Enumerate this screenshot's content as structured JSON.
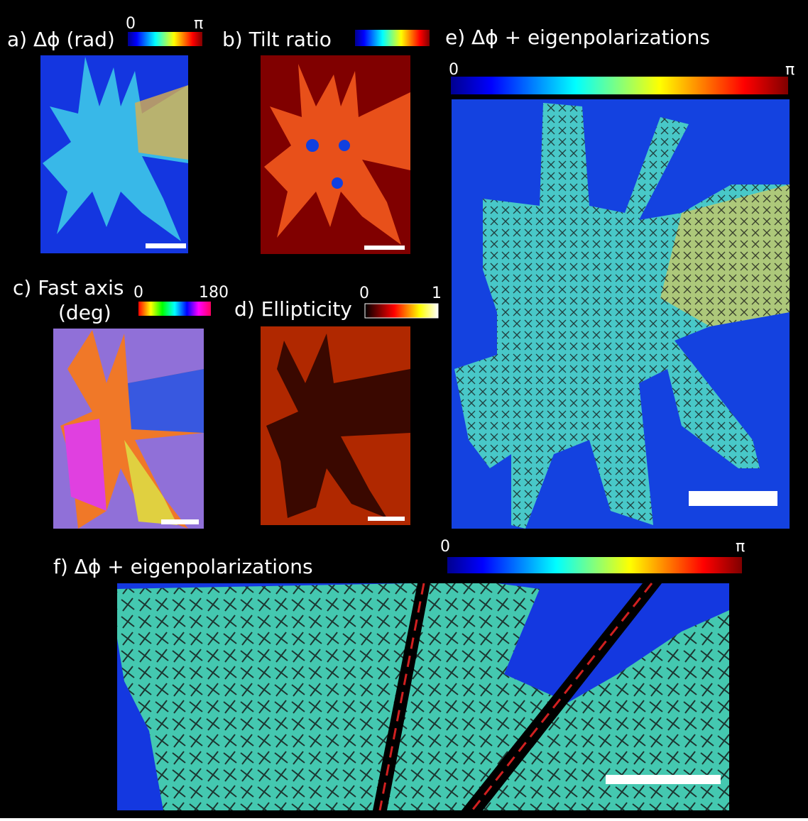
{
  "a": {
    "label": "a) Δϕ (rad)",
    "colorbar": {
      "min": "0",
      "max": "π"
    }
  },
  "b": {
    "label": "b) Tilt ratio"
  },
  "c": {
    "label": "c) Fast axis",
    "label_line2": "(deg)",
    "colorbar": {
      "min": "0",
      "max": "180"
    }
  },
  "d": {
    "label": "d) Ellipticity",
    "colorbar": {
      "min": "0",
      "max": "1"
    }
  },
  "e": {
    "label": "e) Δϕ + eigenpolarizations",
    "colorbar": {
      "min": "0",
      "max": "π"
    }
  },
  "f": {
    "label": "f) Δϕ + eigenpolarizations",
    "colorbar": {
      "min": "0",
      "max": "π"
    }
  }
}
